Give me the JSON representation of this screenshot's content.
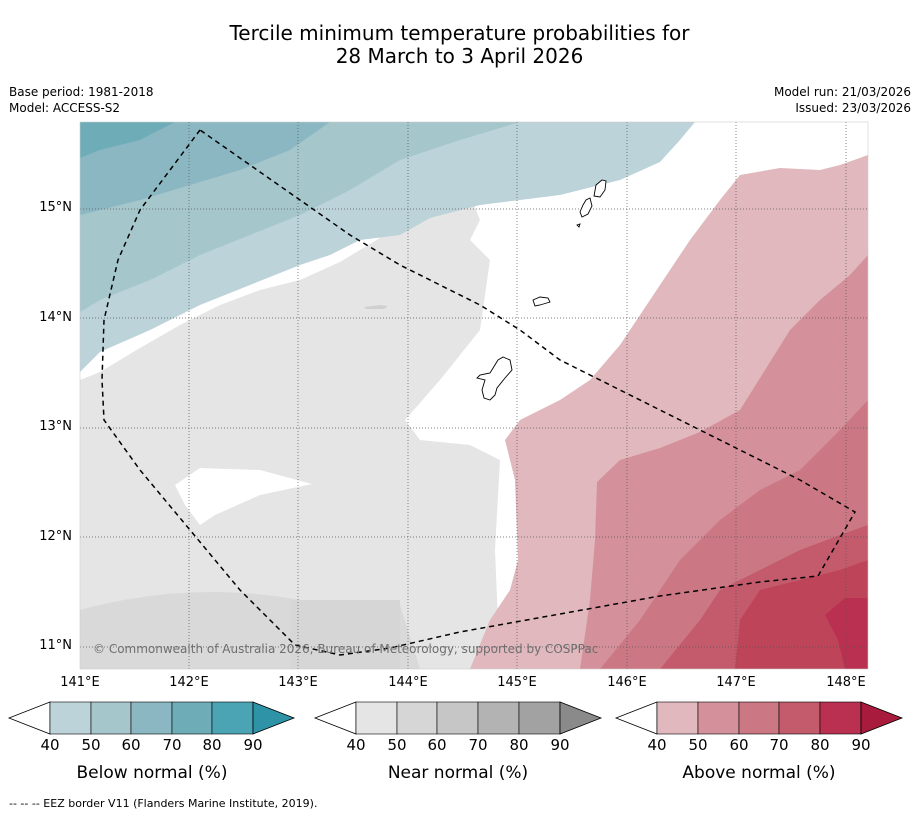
{
  "title": {
    "line1": "Tercile minimum temperature probabilities for",
    "line2": "28 March to 3 April 2026"
  },
  "meta": {
    "base_period": "Base period: 1981-2018",
    "model": "Model: ACCESS-S2",
    "model_run": "Model run: 21/03/2026",
    "issued": "Issued: 23/03/2026"
  },
  "map": {
    "lat_labels": [
      "15°N",
      "14°N",
      "13°N",
      "12°N",
      "11°N"
    ],
    "lon_labels": [
      "141°E",
      "142°E",
      "143°E",
      "144°E",
      "145°E",
      "146°E",
      "147°E",
      "148°E"
    ],
    "copyright": "© Commonwealth of Australia 2026, Bureau of Meteorology, supported by COSPPac"
  },
  "colorbars": [
    {
      "title": "Below normal (%)",
      "ticks": [
        "40",
        "50",
        "60",
        "70",
        "80",
        "90"
      ],
      "colors": [
        "#bdd3da",
        "#a5c6cb",
        "#8bb7c3",
        "#6eadb8",
        "#4ba4b3",
        "#2e93a6"
      ]
    },
    {
      "title": "Near normal (%)",
      "ticks": [
        "40",
        "50",
        "60",
        "70",
        "80",
        "90"
      ],
      "colors": [
        "#e5e5e5",
        "#d6d6d6",
        "#c6c6c6",
        "#b3b3b3",
        "#a2a2a2",
        "#8a8a8a"
      ]
    },
    {
      "title": "Above normal (%)",
      "ticks": [
        "40",
        "50",
        "60",
        "70",
        "80",
        "90"
      ],
      "colors": [
        "#e0b8be",
        "#d4919b",
        "#cc7884",
        "#c35b6c",
        "#b93050",
        "#a81b3d"
      ]
    }
  ],
  "footnote": "--  --  -- EEZ border V11 (Flanders Marine Institute, 2019)."
}
